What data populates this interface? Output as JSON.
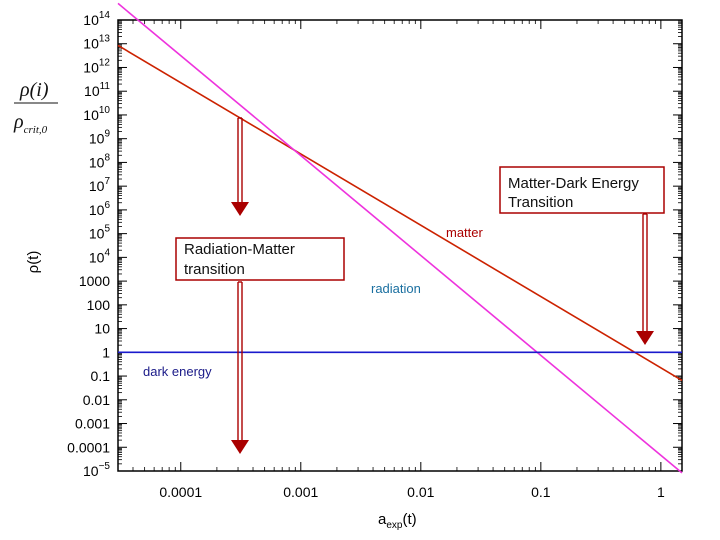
{
  "chart_data": {
    "type": "line",
    "xlabel_main": "a",
    "xlabel_sub": "exp",
    "xlabel_tail": "(t)",
    "ylabel": "ρ(t)",
    "xscale": "log",
    "yscale": "log",
    "xlim": [
      3e-05,
      1.5
    ],
    "ylim": [
      1e-05,
      100000000000000
    ],
    "x_tick_values": [
      0.0001,
      0.001,
      0.01,
      0.1,
      1
    ],
    "x_tick_labels": [
      "0.0001",
      "0.001",
      "0.01",
      "0.1",
      "1"
    ],
    "y_tick_values": [
      100000000000000,
      10000000000000,
      1000000000000,
      100000000000,
      10000000000,
      1000000000,
      100000000,
      10000000,
      1000000,
      100000,
      10000,
      1000,
      100,
      10,
      1,
      0.1,
      0.01,
      0.001,
      0.0001,
      1e-05
    ],
    "y_tick_labels": [
      {
        "base": "10",
        "exp": "14"
      },
      {
        "base": "10",
        "exp": "13"
      },
      {
        "base": "10",
        "exp": "12"
      },
      {
        "base": "10",
        "exp": "11"
      },
      {
        "base": "10",
        "exp": "10"
      },
      {
        "base": "10",
        "exp": "9"
      },
      {
        "base": "10",
        "exp": "8"
      },
      {
        "base": "10",
        "exp": "7"
      },
      {
        "base": "10",
        "exp": "6"
      },
      {
        "base": "10",
        "exp": "5"
      },
      {
        "base": "10",
        "exp": "4"
      },
      {
        "base": "1000",
        "exp": ""
      },
      {
        "base": "100",
        "exp": ""
      },
      {
        "base": "10",
        "exp": ""
      },
      {
        "base": "1",
        "exp": ""
      },
      {
        "base": "0.1",
        "exp": ""
      },
      {
        "base": "0.01",
        "exp": ""
      },
      {
        "base": "0.001",
        "exp": ""
      },
      {
        "base": "0.0001",
        "exp": ""
      },
      {
        "base": "10",
        "exp": "−5"
      }
    ],
    "series": [
      {
        "name": "matter",
        "color": "#cc2200",
        "x": [
          3e-05,
          1.5
        ],
        "y": [
          8500000000000,
          0.0657
        ]
      },
      {
        "name": "radiation",
        "color": "#ee33dd",
        "x": [
          3e-05,
          1.5
        ],
        "y": [
          500000000000000,
          8.3e-06
        ]
      },
      {
        "name": "dark energy",
        "color": "#1a1acc",
        "x": [
          3e-05,
          1.5
        ],
        "y": [
          1,
          1
        ]
      }
    ],
    "annotations": [
      {
        "name": "radiation-matter",
        "lines": [
          "Radiation-Matter",
          "transition"
        ],
        "x": 0.00031
      },
      {
        "name": "matter-dark-energy",
        "lines": [
          "Matter-Dark Energy",
          "Transition"
        ],
        "x": 0.74
      }
    ],
    "side_formula": {
      "numerator": "ρ(i)",
      "denominator_symbol": "ρ",
      "denominator_sub": "crit,0"
    }
  },
  "colors": {
    "arrow": "#aa0000",
    "box_border": "#aa0000",
    "radiation_label": "#1a6fa0",
    "matter_label": "#aa0000",
    "dark_energy_label": "#1a1a88"
  }
}
